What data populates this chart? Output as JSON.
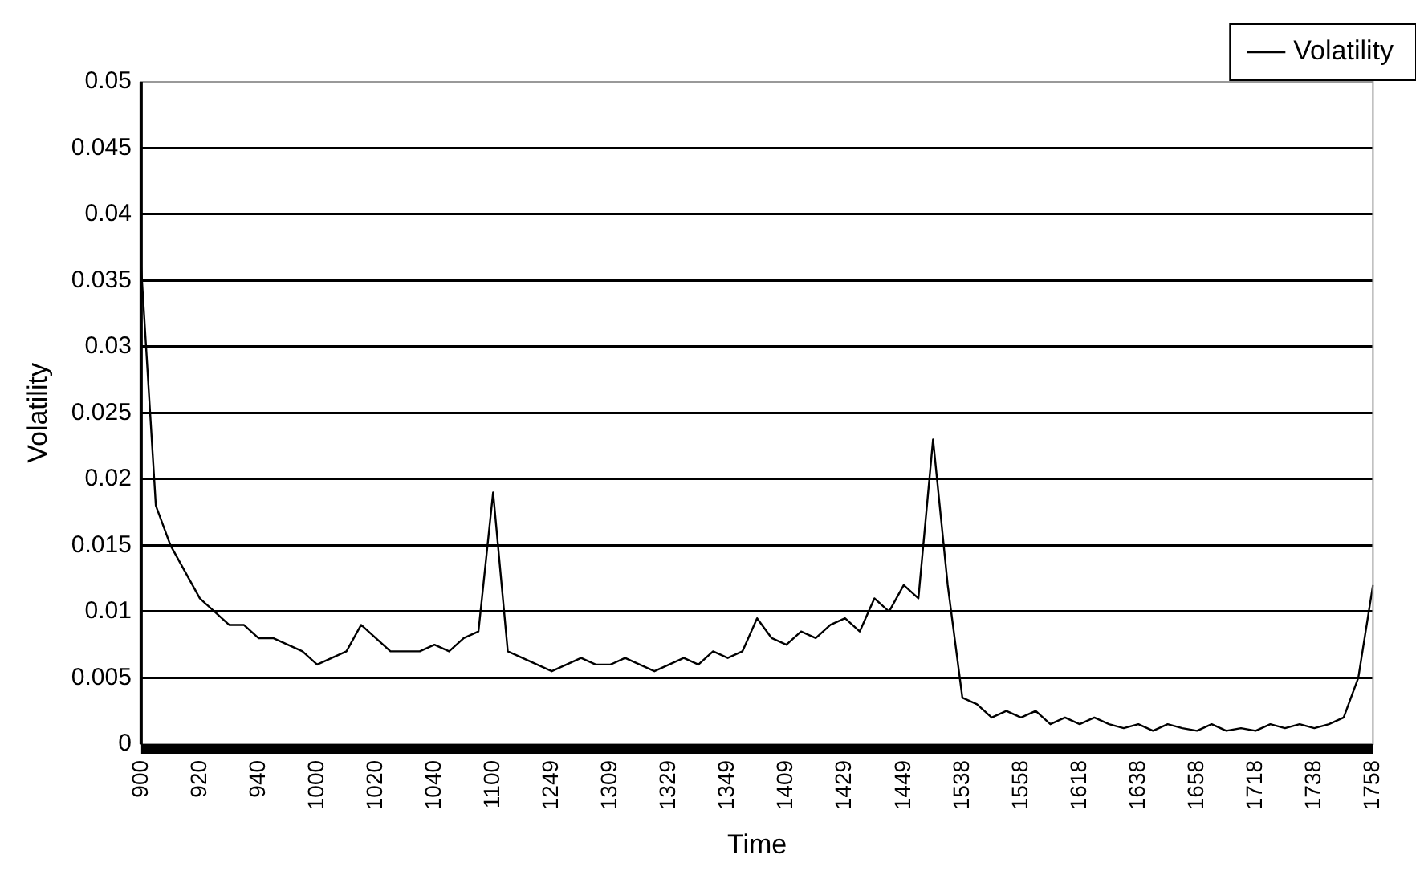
{
  "chart_data": {
    "type": "line",
    "xlabel": "Time",
    "ylabel": "Volatility",
    "categories": [
      "900",
      null,
      null,
      null,
      "920",
      null,
      null,
      null,
      "940",
      null,
      null,
      null,
      "1000",
      null,
      null,
      null,
      "1020",
      null,
      null,
      null,
      "1040",
      null,
      null,
      null,
      "1100",
      null,
      null,
      null,
      "1249",
      null,
      null,
      null,
      "1309",
      null,
      null,
      null,
      "1329",
      null,
      null,
      null,
      "1349",
      null,
      null,
      null,
      "1409",
      null,
      null,
      null,
      "1429",
      null,
      null,
      null,
      "1449",
      null,
      null,
      null,
      "1538",
      null,
      null,
      null,
      "1558",
      null,
      null,
      null,
      "1618",
      null,
      null,
      null,
      "1638",
      null,
      null,
      null,
      "1658",
      null,
      null,
      null,
      "1718",
      null,
      null,
      null,
      "1738",
      null,
      null,
      null,
      "1758"
    ],
    "series": [
      {
        "name": "Volatility",
        "color": "#000000",
        "values": [
          0.036,
          0.018,
          0.015,
          0.013,
          0.011,
          0.01,
          0.009,
          0.009,
          0.008,
          0.008,
          0.0075,
          0.007,
          0.006,
          0.0065,
          0.007,
          0.009,
          0.008,
          0.007,
          0.007,
          0.007,
          0.0075,
          0.007,
          0.008,
          0.0085,
          0.019,
          0.007,
          0.0065,
          0.006,
          0.0055,
          0.006,
          0.0065,
          0.006,
          0.006,
          0.0065,
          0.006,
          0.0055,
          0.006,
          0.0065,
          0.006,
          0.007,
          0.0065,
          0.007,
          0.0095,
          0.008,
          0.0075,
          0.0085,
          0.008,
          0.009,
          0.0095,
          0.0085,
          0.011,
          0.01,
          0.012,
          0.011,
          0.023,
          0.012,
          0.0035,
          0.003,
          0.002,
          0.0025,
          0.002,
          0.0025,
          0.0015,
          0.002,
          0.0015,
          0.002,
          0.0015,
          0.0012,
          0.0015,
          0.001,
          0.0015,
          0.0012,
          0.001,
          0.0015,
          0.001,
          0.0012,
          0.001,
          0.0015,
          0.0012,
          0.0015,
          0.0012,
          0.0015,
          0.002,
          0.005,
          0.012
        ]
      }
    ],
    "ylim": [
      0,
      0.05
    ],
    "yticks": [
      0,
      0.005,
      0.01,
      0.015,
      0.02,
      0.025,
      0.03,
      0.035,
      0.04,
      0.045,
      0.05
    ],
    "grid": "y",
    "legend": "top right",
    "marker": "none",
    "line_style": "solid"
  }
}
